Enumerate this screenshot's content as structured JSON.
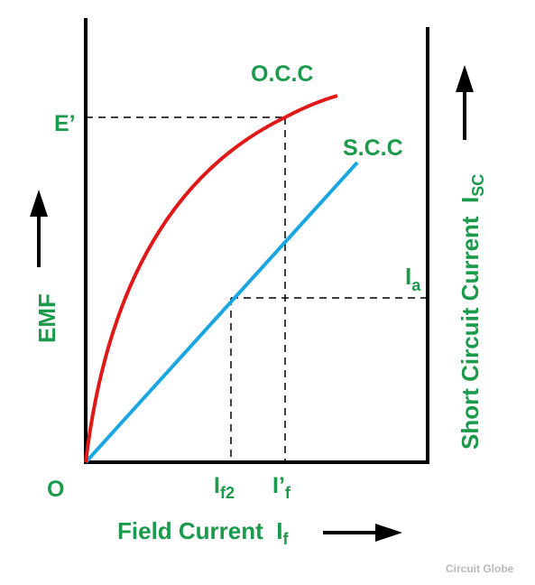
{
  "labels": {
    "occ": "O.C.C",
    "scc": "S.C.C",
    "e_prime": "E’",
    "origin": "O",
    "emf": "EMF",
    "ia_main": "I",
    "ia_sub": "a",
    "if2_main": "I",
    "if2_sub": "f2",
    "if_prime_main": "I’",
    "if_prime_sub": "f",
    "x_axis_main": "Field Current  I",
    "x_axis_sub": "f",
    "right_axis_main": "Short Circuit Current  I",
    "right_axis_sub": "SC"
  },
  "watermark": "Circuit Globe",
  "colors": {
    "label": "#1a9a4a",
    "occ_curve": "#e01818",
    "scc_line": "#1aa6e0",
    "axes": "#000000",
    "watermark": "#b9b9b9"
  }
}
